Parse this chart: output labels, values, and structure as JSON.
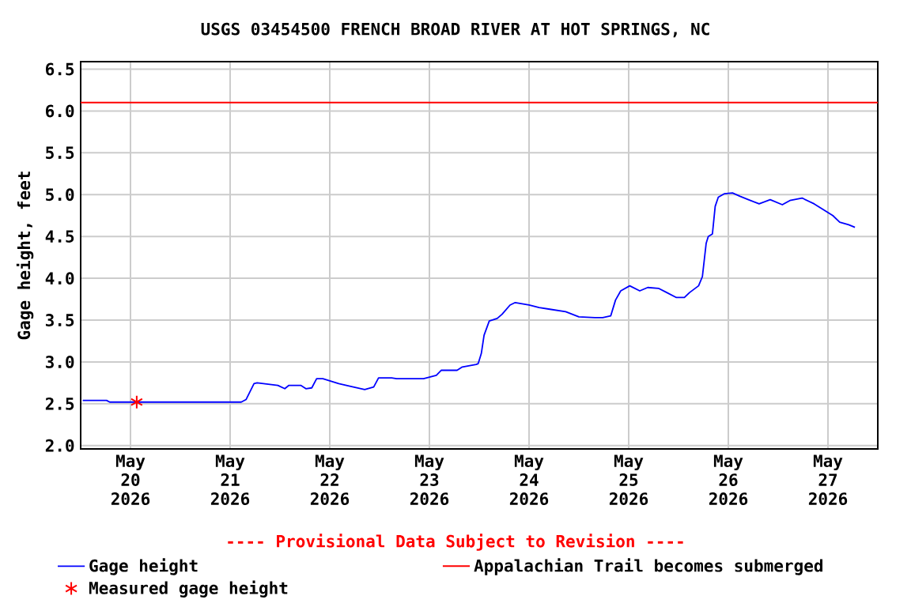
{
  "chart_data": {
    "type": "line",
    "title": "USGS 03454500 FRENCH BROAD RIVER AT HOT SPRINGS, NC",
    "ylabel": "Gage height, feet",
    "annotations": [
      "---- Provisional Data Subject to Revision ----"
    ],
    "xlim": [
      "2026-05-19T12:00",
      "2026-05-27T12:00"
    ],
    "xticks": [
      {
        "value": "2026-05-20",
        "label": "May 20 2026"
      },
      {
        "value": "2026-05-21",
        "label": "May 21 2026"
      },
      {
        "value": "2026-05-22",
        "label": "May 22 2026"
      },
      {
        "value": "2026-05-23",
        "label": "May 23 2026"
      },
      {
        "value": "2026-05-24",
        "label": "May 24 2026"
      },
      {
        "value": "2026-05-25",
        "label": "May 25 2026"
      },
      {
        "value": "2026-05-26",
        "label": "May 26 2026"
      },
      {
        "value": "2026-05-27",
        "label": "May 27 2026"
      }
    ],
    "ylim": [
      1.96,
      6.59
    ],
    "yticks": [
      {
        "value": 2,
        "label": "2.0"
      },
      2.5,
      {
        "value": 3,
        "label": "3.0"
      },
      3.5,
      {
        "value": 4,
        "label": "4.0"
      },
      4.5,
      {
        "value": 5,
        "label": "5.0"
      },
      5.5,
      {
        "value": 6,
        "label": "6.0"
      },
      6.5
    ],
    "grid": true,
    "legend": "bottom",
    "ref_lines": [
      {
        "axis": "y",
        "value": 6.1,
        "label": "Appalachian Trail becomes submerged",
        "color": "#ff0000"
      }
    ],
    "series": [
      {
        "name": "Gage height",
        "color": "#0000ff",
        "x": [
          "2026-05-19T12:30",
          "2026-05-19T18:15",
          "2026-05-19T19:00",
          "2026-05-20T01:30",
          "2026-05-21T02:40",
          "2026-05-21T03:50",
          "2026-05-21T05:45",
          "2026-05-21T06:30",
          "2026-05-21T11:30",
          "2026-05-21T13:10",
          "2026-05-21T14:10",
          "2026-05-21T17:00",
          "2026-05-21T18:15",
          "2026-05-21T19:40",
          "2026-05-21T20:50",
          "2026-05-21T22:20",
          "2026-05-22T02:10",
          "2026-05-22T04:50",
          "2026-05-22T08:25",
          "2026-05-22T10:35",
          "2026-05-22T11:45",
          "2026-05-22T14:55",
          "2026-05-22T16:05",
          "2026-05-22T22:35",
          "2026-05-23T01:40",
          "2026-05-23T02:50",
          "2026-05-23T06:40",
          "2026-05-23T07:55",
          "2026-05-23T11:15",
          "2026-05-23T11:45",
          "2026-05-23T12:30",
          "2026-05-23T13:10",
          "2026-05-23T14:25",
          "2026-05-23T16:20",
          "2026-05-23T17:30",
          "2026-05-23T19:25",
          "2026-05-23T20:40",
          "2026-05-24T00:00",
          "2026-05-24T02:25",
          "2026-05-24T05:00",
          "2026-05-24T08:50",
          "2026-05-24T12:00",
          "2026-05-24T15:50",
          "2026-05-24T17:45",
          "2026-05-24T19:40",
          "2026-05-24T20:50",
          "2026-05-24T22:05",
          "2026-05-25T00:15",
          "2026-05-25T02:40",
          "2026-05-25T04:35",
          "2026-05-25T07:10",
          "2026-05-25T09:10",
          "2026-05-25T11:30",
          "2026-05-25T13:25",
          "2026-05-25T14:40",
          "2026-05-25T16:50",
          "2026-05-25T17:45",
          "2026-05-25T18:40",
          "2026-05-25T19:10",
          "2026-05-25T20:10",
          "2026-05-25T20:50",
          "2026-05-25T21:35",
          "2026-05-25T23:00",
          "2026-05-26T01:00",
          "2026-05-26T02:50",
          "2026-05-26T04:50",
          "2026-05-26T07:25",
          "2026-05-26T10:05",
          "2026-05-26T13:00",
          "2026-05-26T14:50",
          "2026-05-26T17:45",
          "2026-05-26T20:40",
          "2026-05-26T22:35",
          "2026-05-27T01:10",
          "2026-05-27T02:50",
          "2026-05-27T05:00",
          "2026-05-27T06:30"
        ],
        "values": [
          2.54,
          2.54,
          2.52,
          2.52,
          2.52,
          2.55,
          2.74,
          2.75,
          2.72,
          2.68,
          2.72,
          2.72,
          2.68,
          2.69,
          2.8,
          2.8,
          2.74,
          2.71,
          2.67,
          2.7,
          2.81,
          2.81,
          2.8,
          2.8,
          2.84,
          2.9,
          2.9,
          2.94,
          2.97,
          2.98,
          3.1,
          3.32,
          3.49,
          3.52,
          3.57,
          3.68,
          3.71,
          3.68,
          3.65,
          3.63,
          3.6,
          3.54,
          3.53,
          3.53,
          3.55,
          3.74,
          3.85,
          3.91,
          3.85,
          3.89,
          3.88,
          3.83,
          3.77,
          3.77,
          3.83,
          3.91,
          4.02,
          4.42,
          4.5,
          4.53,
          4.86,
          4.97,
          5.01,
          5.02,
          4.98,
          4.94,
          4.89,
          4.94,
          4.88,
          4.93,
          4.96,
          4.89,
          4.83,
          4.75,
          4.67,
          4.64,
          4.61
        ]
      },
      {
        "name": "Measured gage height",
        "type": "scatter",
        "color": "#ff0000",
        "marker": "cross",
        "x": [
          "2026-05-20T01:30"
        ],
        "values": [
          2.52
        ]
      }
    ]
  }
}
